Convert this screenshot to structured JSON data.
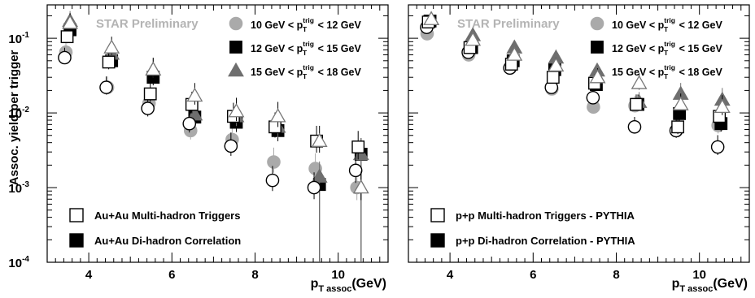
{
  "y_title": "Assoc. yield per trigger",
  "chart_data": [
    {
      "type": "scatter",
      "panel": "left",
      "title": "",
      "watermark": "STAR Preliminary",
      "xlabel_main": "p",
      "xlabel_sub": "T assoc",
      "xlabel_unit": "(GeV)",
      "xlim": [
        3,
        11.2
      ],
      "ylim": [
        0.0001,
        0.28
      ],
      "yscale": "log",
      "x_ticks": [
        4,
        6,
        8,
        10
      ],
      "x_tick_labels": [
        "4",
        "6",
        "8",
        "10"
      ],
      "y_tick_labels": [
        {
          "base": "10",
          "exp": "-4",
          "value": 0.0001
        },
        {
          "base": "10",
          "exp": "-3",
          "value": 0.001
        },
        {
          "base": "10",
          "exp": "-2",
          "value": 0.01
        },
        {
          "base": "10",
          "exp": "-1",
          "value": 0.1
        }
      ],
      "legend_bins": [
        {
          "lo": "10 GeV < p",
          "sup": "trig",
          "sub": "T",
          "hi": " < 12 GeV",
          "marker": "circle"
        },
        {
          "lo": "12 GeV < p",
          "sup": "trig",
          "sub": "T",
          "hi": " < 15 GeV",
          "marker": "square"
        },
        {
          "lo": "15 GeV < p",
          "sup": "trig",
          "sub": "T",
          "hi": " < 18 GeV",
          "marker": "triangle"
        }
      ],
      "legend_types": [
        {
          "label": "Au+Au Multi-hadron Triggers",
          "fill": "open"
        },
        {
          "label": "Au+Au Di-hadron Correlation",
          "fill": "filled"
        }
      ],
      "x": [
        3.5,
        4.5,
        5.5,
        6.5,
        7.5,
        8.5,
        9.5,
        10.5
      ],
      "series": [
        {
          "marker": "circle",
          "fill": "filled",
          "color": "#aaaaaa",
          "dx": -0.05,
          "values": [
            0.065,
            0.022,
            0.0135,
            0.0058,
            0.0044,
            0.0022,
            0.0018,
            0.001
          ]
        },
        {
          "marker": "square",
          "fill": "filled",
          "color": "#000000",
          "dx": 0.05,
          "values": [
            0.13,
            0.05,
            0.03,
            0.0088,
            0.0075,
            0.0058,
            0.0011,
            0.0028
          ]
        },
        {
          "marker": "triangle",
          "fill": "filled",
          "color": "#6e6e6e",
          "dx": 0.05,
          "values": [
            0.17,
            0.062,
            0.038,
            0.0095,
            0.009,
            0.0065,
            0.0014,
            0.0028
          ]
        },
        {
          "marker": "circle",
          "fill": "open",
          "color": "#000000",
          "dx": -0.08,
          "values": [
            0.055,
            0.022,
            0.0115,
            0.0072,
            0.0036,
            0.00125,
            0.001,
            0.0017
          ]
        },
        {
          "marker": "square",
          "fill": "open",
          "color": "#000000",
          "dx": -0.02,
          "values": [
            0.105,
            0.048,
            0.018,
            0.013,
            0.009,
            0.0065,
            0.0042,
            0.0035
          ]
        },
        {
          "marker": "triangle",
          "fill": "open",
          "color": "#777777",
          "dx": 0.05,
          "values": [
            0.16,
            0.075,
            0.038,
            0.017,
            0.0105,
            0.009,
            0.0042,
            0.001
          ]
        }
      ]
    },
    {
      "type": "scatter",
      "panel": "right",
      "title": "",
      "watermark": "STAR Preliminary",
      "xlabel_main": "p",
      "xlabel_sub": "T assoc",
      "xlabel_unit": "(GeV)",
      "xlim": [
        3,
        11.2
      ],
      "ylim": [
        0.0001,
        0.28
      ],
      "yscale": "log",
      "x_ticks": [
        4,
        6,
        8,
        10
      ],
      "x_tick_labels": [
        "4",
        "6",
        "8",
        "10"
      ],
      "legend_bins": [
        {
          "lo": "10 GeV < p",
          "sup": "trig",
          "sub": "T",
          "hi": " < 12 GeV",
          "marker": "circle"
        },
        {
          "lo": "12 GeV < p",
          "sup": "trig",
          "sub": "T",
          "hi": " < 15 GeV",
          "marker": "square"
        },
        {
          "lo": "15 GeV < p",
          "sup": "trig",
          "sub": "T",
          "hi": " < 18 GeV",
          "marker": "triangle"
        }
      ],
      "legend_types": [
        {
          "label": "p+p Multi-hadron Triggers - PYTHIA",
          "fill": "open"
        },
        {
          "label": "p+p Di-hadron Correlation - PYTHIA",
          "fill": "filled"
        }
      ],
      "x": [
        3.5,
        4.5,
        5.5,
        6.5,
        7.5,
        8.5,
        9.5,
        10.5
      ],
      "series": [
        {
          "marker": "circle",
          "fill": "filled",
          "color": "#aaaaaa",
          "dx": -0.05,
          "values": [
            0.115,
            0.06,
            0.04,
            0.021,
            0.012,
            0.0125,
            0.0058,
            0.0068
          ]
        },
        {
          "marker": "square",
          "fill": "filled",
          "color": "#000000",
          "dx": 0.02,
          "values": [
            0.17,
            0.075,
            0.05,
            0.038,
            0.024,
            0.013,
            0.0098,
            0.0072
          ]
        },
        {
          "marker": "triangle",
          "fill": "filled",
          "color": "#6e6e6e",
          "dx": 0.05,
          "values": [
            0.18,
            0.11,
            0.075,
            0.055,
            0.03,
            0.014,
            0.018,
            0.015
          ]
        },
        {
          "marker": "circle",
          "fill": "open",
          "color": "#000000",
          "dx": -0.06,
          "values": [
            0.14,
            0.065,
            0.04,
            0.022,
            0.016,
            0.0065,
            0.0058,
            0.0035
          ]
        },
        {
          "marker": "square",
          "fill": "open",
          "color": "#000000",
          "dx": -0.02,
          "values": [
            0.165,
            0.075,
            0.045,
            0.03,
            0.025,
            0.013,
            0.0065,
            0.009
          ]
        },
        {
          "marker": "triangle",
          "fill": "open",
          "color": "#777777",
          "dx": 0.05,
          "values": [
            0.18,
            0.095,
            0.06,
            0.043,
            0.03,
            0.025,
            0.013,
            0.012
          ]
        }
      ]
    }
  ]
}
